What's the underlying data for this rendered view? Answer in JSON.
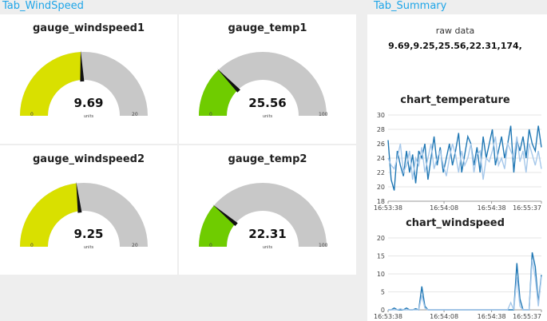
{
  "tabs": {
    "windspeed": "Tab_WindSpeed",
    "summary": "Tab_Summary"
  },
  "gauges": [
    {
      "title": "gauge_windspeed1",
      "value": "9.69",
      "units": "units",
      "min": "0",
      "max": "20",
      "numeric": 9.69,
      "range": [
        0,
        20
      ],
      "color": "#d9e000"
    },
    {
      "title": "gauge_temp1",
      "value": "25.56",
      "units": "units",
      "min": "0",
      "max": "100",
      "numeric": 25.56,
      "range": [
        0,
        100
      ],
      "color": "#6fcc00"
    },
    {
      "title": "gauge_windspeed2",
      "value": "9.25",
      "units": "units",
      "min": "0",
      "max": "20",
      "numeric": 9.25,
      "range": [
        0,
        20
      ],
      "color": "#d9e000"
    },
    {
      "title": "gauge_temp2",
      "value": "22.31",
      "units": "units",
      "min": "0",
      "max": "100",
      "numeric": 22.31,
      "range": [
        0,
        100
      ],
      "color": "#6fcc00"
    }
  ],
  "summary": {
    "raw_label": "raw data",
    "raw_value": "9.69,9.25,25.56,22.31,174,"
  },
  "chart_data": [
    {
      "type": "line",
      "title": "chart_temperature",
      "ylim": [
        18,
        30
      ],
      "yticks": [
        "30",
        "28",
        "26",
        "24",
        "22",
        "20",
        "18"
      ],
      "xticks": [
        "16:53:38",
        "16:54:08",
        "16:54:38",
        "16:55:37"
      ],
      "series": [
        {
          "color": "#1f77b4",
          "values": [
            26.5,
            21,
            19.5,
            25,
            23,
            21.5,
            25,
            22,
            24.5,
            20.5,
            25,
            24,
            26,
            21,
            24,
            27,
            23,
            25.5,
            22,
            24,
            26,
            23,
            25,
            27.5,
            22,
            24.5,
            27,
            26,
            23,
            25.5,
            22,
            27,
            24,
            26,
            28,
            23,
            25,
            27,
            24,
            26,
            28.5,
            22,
            26.5,
            25,
            27,
            24,
            28,
            26,
            25,
            28.5,
            25.5
          ]
        },
        {
          "color": "#a6c8ea",
          "values": [
            24,
            23,
            22.5,
            24,
            26,
            22,
            23,
            25,
            21,
            24,
            23,
            25.5,
            22,
            24,
            26,
            22.5,
            24,
            25,
            23,
            21.5,
            24,
            26,
            24.5,
            22,
            25,
            23,
            24,
            26,
            22,
            24.5,
            25,
            21,
            24,
            23.5,
            25,
            27,
            23,
            24,
            22.5,
            26,
            25,
            24,
            27,
            23.5,
            25,
            22,
            26,
            24.5,
            23,
            25,
            22.5
          ]
        }
      ]
    },
    {
      "type": "line",
      "title": "chart_windspeed",
      "ylim": [
        0,
        20
      ],
      "yticks": [
        "20",
        "15",
        "10",
        "5",
        "0"
      ],
      "xticks": [
        "16:53:38",
        "16:54:08",
        "16:54:38",
        "16:55:37"
      ],
      "series": [
        {
          "color": "#1f77b4",
          "values": [
            0,
            0,
            0.5,
            0,
            0,
            0,
            0.5,
            0,
            0,
            0.3,
            0,
            6.5,
            1,
            0,
            0,
            0,
            0,
            0,
            0,
            0,
            0,
            0,
            0,
            0,
            0,
            0,
            0,
            0,
            0,
            0,
            0,
            0,
            0,
            0,
            0,
            0,
            0,
            0,
            0,
            0,
            0,
            0,
            13,
            3,
            0,
            0,
            0,
            16,
            12,
            2,
            9.7
          ]
        },
        {
          "color": "#a6c8ea",
          "values": [
            0,
            0,
            0,
            0,
            0.3,
            0,
            0,
            0,
            0,
            0,
            0,
            4,
            0.5,
            0,
            0,
            0,
            0,
            0,
            0,
            0,
            0,
            0,
            0,
            0,
            0,
            0,
            0,
            0,
            0,
            0,
            0,
            0,
            0,
            0,
            0,
            0,
            0,
            0,
            0,
            0,
            2,
            0,
            9,
            1,
            0,
            0,
            0,
            14,
            9,
            1,
            9.3
          ]
        }
      ]
    }
  ]
}
